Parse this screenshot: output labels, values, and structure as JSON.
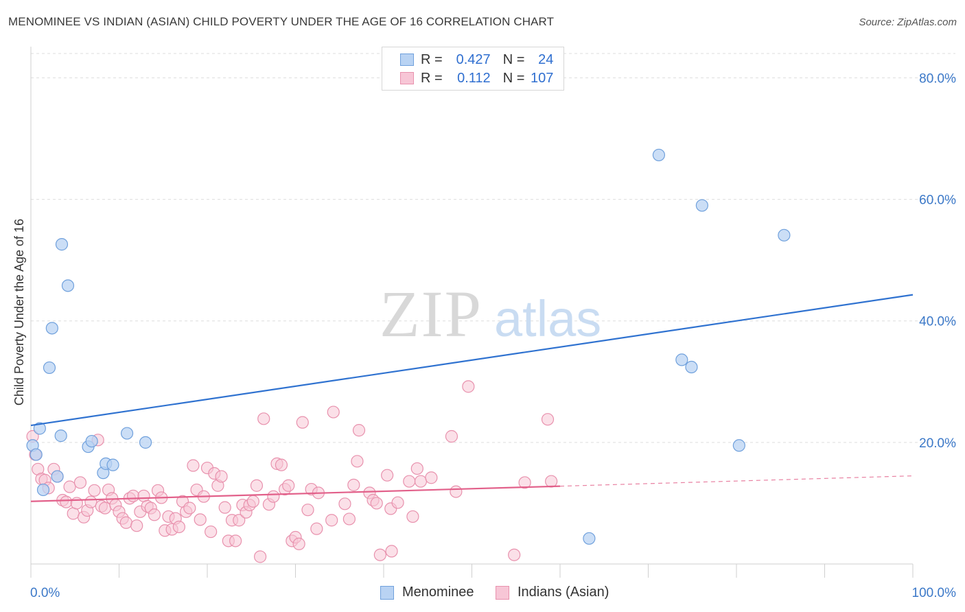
{
  "title": "MENOMINEE VS INDIAN (ASIAN) CHILD POVERTY UNDER THE AGE OF 16 CORRELATION CHART",
  "source": "Source: ZipAtlas.com",
  "watermark": {
    "part1": "ZIP",
    "part2": "atlas"
  },
  "colors": {
    "blue_fill": "#b9d3f3",
    "blue_stroke": "#6fa0dc",
    "blue_line": "#2f72d0",
    "pink_fill": "#f7c6d6",
    "pink_stroke": "#e891ad",
    "pink_line": "#e2608a",
    "axis_text": "#3b78c8",
    "grid": "#dddddd"
  },
  "stats_legend": {
    "rows": [
      {
        "r_label": "R =",
        "r_value": "0.427",
        "n_label": "N =",
        "n_value": "24"
      },
      {
        "r_label": "R =",
        "r_value": "0.112",
        "n_label": "N =",
        "n_value": "107"
      }
    ]
  },
  "bottom_legend": {
    "items": [
      "Menominee",
      "Indians (Asian)"
    ]
  },
  "chart_data": {
    "type": "scatter",
    "title": "MENOMINEE VS INDIAN (ASIAN) CHILD POVERTY UNDER THE AGE OF 16 CORRELATION CHART",
    "xlabel": "",
    "ylabel": "Child Poverty Under the Age of 16",
    "xlim": [
      0,
      100
    ],
    "ylim": [
      0,
      84
    ],
    "x_tick_labels": [
      "0.0%",
      "100.0%"
    ],
    "y_ticks": [
      20,
      40,
      60,
      80
    ],
    "y_tick_labels": [
      "20.0%",
      "40.0%",
      "60.0%",
      "80.0%"
    ],
    "grid": true,
    "legend_position": "top-center",
    "series": [
      {
        "name": "Menominee",
        "points": [
          [
            0.2,
            19.5
          ],
          [
            0.6,
            18.0
          ],
          [
            1.0,
            22.3
          ],
          [
            1.4,
            12.2
          ],
          [
            2.1,
            32.3
          ],
          [
            2.4,
            38.8
          ],
          [
            3.0,
            14.4
          ],
          [
            3.4,
            21.1
          ],
          [
            3.5,
            52.6
          ],
          [
            4.2,
            45.8
          ],
          [
            6.5,
            19.3
          ],
          [
            6.9,
            20.2
          ],
          [
            8.2,
            15.0
          ],
          [
            8.5,
            16.5
          ],
          [
            9.3,
            16.3
          ],
          [
            10.9,
            21.5
          ],
          [
            13.0,
            20.0
          ],
          [
            63.3,
            4.2
          ],
          [
            71.2,
            67.3
          ],
          [
            73.8,
            33.6
          ],
          [
            74.9,
            32.4
          ],
          [
            76.1,
            59.0
          ],
          [
            80.3,
            19.5
          ],
          [
            85.4,
            54.1
          ]
        ],
        "trend": {
          "x": [
            0,
            100
          ],
          "y": [
            22.8,
            44.3
          ]
        }
      },
      {
        "name": "Indians (Asian)",
        "points": [
          [
            0.2,
            21.0
          ],
          [
            0.5,
            18.0
          ],
          [
            0.8,
            15.6
          ],
          [
            1.2,
            14.0
          ],
          [
            1.6,
            13.8
          ],
          [
            2.0,
            12.5
          ],
          [
            2.6,
            15.6
          ],
          [
            3.0,
            14.4
          ],
          [
            3.6,
            10.5
          ],
          [
            4.0,
            10.2
          ],
          [
            4.4,
            12.7
          ],
          [
            4.8,
            8.3
          ],
          [
            5.2,
            10.0
          ],
          [
            5.6,
            13.4
          ],
          [
            6.0,
            7.7
          ],
          [
            6.4,
            8.8
          ],
          [
            6.8,
            10.2
          ],
          [
            7.2,
            12.1
          ],
          [
            7.6,
            20.4
          ],
          [
            8.0,
            9.5
          ],
          [
            8.4,
            9.2
          ],
          [
            8.8,
            12.2
          ],
          [
            9.2,
            10.8
          ],
          [
            9.6,
            9.7
          ],
          [
            10.0,
            8.6
          ],
          [
            10.4,
            7.5
          ],
          [
            10.8,
            6.8
          ],
          [
            11.2,
            10.8
          ],
          [
            11.6,
            11.2
          ],
          [
            12.0,
            6.3
          ],
          [
            12.4,
            8.6
          ],
          [
            12.8,
            11.2
          ],
          [
            13.2,
            9.5
          ],
          [
            13.6,
            9.2
          ],
          [
            14.0,
            8.1
          ],
          [
            14.4,
            12.1
          ],
          [
            14.8,
            10.9
          ],
          [
            15.2,
            5.5
          ],
          [
            15.6,
            7.8
          ],
          [
            16.0,
            5.7
          ],
          [
            16.4,
            7.5
          ],
          [
            16.8,
            6.1
          ],
          [
            17.2,
            10.3
          ],
          [
            17.6,
            8.6
          ],
          [
            18.0,
            9.2
          ],
          [
            18.4,
            16.2
          ],
          [
            18.8,
            12.2
          ],
          [
            19.2,
            7.3
          ],
          [
            19.6,
            11.1
          ],
          [
            20.0,
            15.8
          ],
          [
            20.4,
            5.3
          ],
          [
            20.8,
            14.9
          ],
          [
            21.2,
            12.9
          ],
          [
            21.6,
            14.4
          ],
          [
            22.0,
            9.3
          ],
          [
            22.4,
            3.8
          ],
          [
            22.8,
            7.2
          ],
          [
            23.2,
            3.8
          ],
          [
            23.6,
            7.2
          ],
          [
            24.0,
            9.7
          ],
          [
            24.4,
            8.5
          ],
          [
            24.8,
            9.7
          ],
          [
            25.2,
            10.3
          ],
          [
            25.6,
            12.9
          ],
          [
            26.0,
            1.2
          ],
          [
            26.4,
            23.9
          ],
          [
            27.0,
            9.8
          ],
          [
            27.5,
            11.1
          ],
          [
            27.9,
            16.5
          ],
          [
            28.4,
            16.3
          ],
          [
            28.8,
            12.3
          ],
          [
            29.2,
            12.9
          ],
          [
            29.6,
            3.8
          ],
          [
            30.0,
            4.4
          ],
          [
            30.4,
            3.3
          ],
          [
            30.8,
            23.3
          ],
          [
            31.4,
            8.9
          ],
          [
            31.8,
            12.3
          ],
          [
            32.4,
            5.8
          ],
          [
            32.6,
            11.7
          ],
          [
            34.1,
            7.2
          ],
          [
            34.3,
            25.0
          ],
          [
            35.6,
            9.9
          ],
          [
            36.1,
            7.4
          ],
          [
            36.6,
            13.0
          ],
          [
            37.0,
            16.9
          ],
          [
            37.2,
            22.0
          ],
          [
            38.4,
            11.7
          ],
          [
            38.8,
            10.5
          ],
          [
            39.2,
            10.0
          ],
          [
            39.6,
            1.5
          ],
          [
            40.4,
            14.6
          ],
          [
            40.8,
            9.1
          ],
          [
            40.9,
            2.1
          ],
          [
            41.6,
            10.1
          ],
          [
            42.9,
            13.6
          ],
          [
            43.3,
            7.8
          ],
          [
            43.8,
            15.7
          ],
          [
            44.2,
            13.6
          ],
          [
            45.4,
            14.2
          ],
          [
            47.7,
            21.0
          ],
          [
            48.2,
            11.9
          ],
          [
            49.6,
            29.2
          ],
          [
            54.8,
            1.5
          ],
          [
            56.0,
            13.4
          ],
          [
            58.6,
            23.8
          ],
          [
            59.0,
            13.6
          ]
        ],
        "trend": {
          "x": [
            0,
            60
          ],
          "y": [
            10.3,
            12.8
          ]
        },
        "trend_dashed": {
          "x": [
            60,
            100
          ],
          "y": [
            12.8,
            14.5
          ]
        }
      }
    ]
  }
}
